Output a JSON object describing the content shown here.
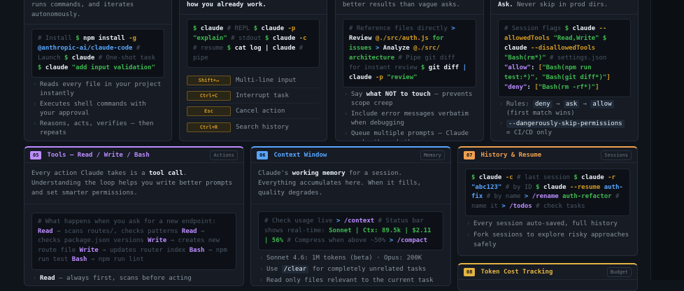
{
  "colors": {
    "tools": "#bc8cff",
    "context": "#58a6ff",
    "history": "#f0a050",
    "budget": "#e3b341"
  },
  "cards_top": [
    {
      "lead": "runs commands, and iterates autonomously.",
      "bullets": [
        "Reads every file in your project instantly",
        "Executes shell commands with your approval",
        "Reasons, acts, verifies — then repeats"
      ]
    },
    {
      "lead": "how you already work.",
      "keys": [
        {
          "key": "Shift+↵",
          "desc": "Multi-line input"
        },
        {
          "key": "Ctrl+C",
          "desc": "Interrupt task"
        },
        {
          "key": "Esc",
          "desc": "Cancel action"
        },
        {
          "key": "Ctrl+R",
          "desc": "Search history"
        }
      ]
    },
    {
      "lead": "better results than vague asks.",
      "bullets": [
        "prevents scope creep",
        "Include error messages verbatim when debugging",
        "Queue multiple prompts — Claude works through them"
      ],
      "bullet0_bold": "what NOT to touch",
      "bullet0_pre": "Say "
    },
    {
      "lead_bold": "Ask.",
      "lead": " Never skip in prod dirs.",
      "rules": "Rules:",
      "rule_items": [
        "deny",
        "ask",
        "allow"
      ],
      "rules_tail": "(first match wins)",
      "skip_flag": "--dangerously-skip-permissions",
      "skip_tail": "= CI/CD only"
    }
  ],
  "tools": {
    "num": "05",
    "title": "Tools — Read / Write / Bash",
    "tag": "Actions",
    "lead_pre": "Every action Claude takes is a ",
    "lead_bold": "tool call",
    "lead_post": ". Understanding the loop helps you write better prompts and set smarter permissions.",
    "bullet_bold": "Read",
    "bullet": " — always first, scans before acting"
  },
  "context": {
    "num": "06",
    "title": "Context Window",
    "tag": "Memory",
    "lead_pre": "Claude's ",
    "lead_bold": "working memory",
    "lead_post": " for a session. Everything accumulates here. When it fills, quality degrades.",
    "bullets": [
      "Sonnet 4.6: 1M tokens (beta) · Opus: 200K",
      "for completely unrelated tasks",
      "Read only files relevant to the current task"
    ],
    "clear_pre": "Use ",
    "clear_cmd": "/clear"
  },
  "history": {
    "num": "07",
    "title": "History & Resume",
    "tag": "Sessions",
    "bullets": [
      "Every session auto-saved, full history",
      "Fork sessions to explore risky approaches safely"
    ]
  },
  "budget": {
    "num": "08",
    "title": "Token Cost Tracking",
    "tag": "Budget"
  }
}
